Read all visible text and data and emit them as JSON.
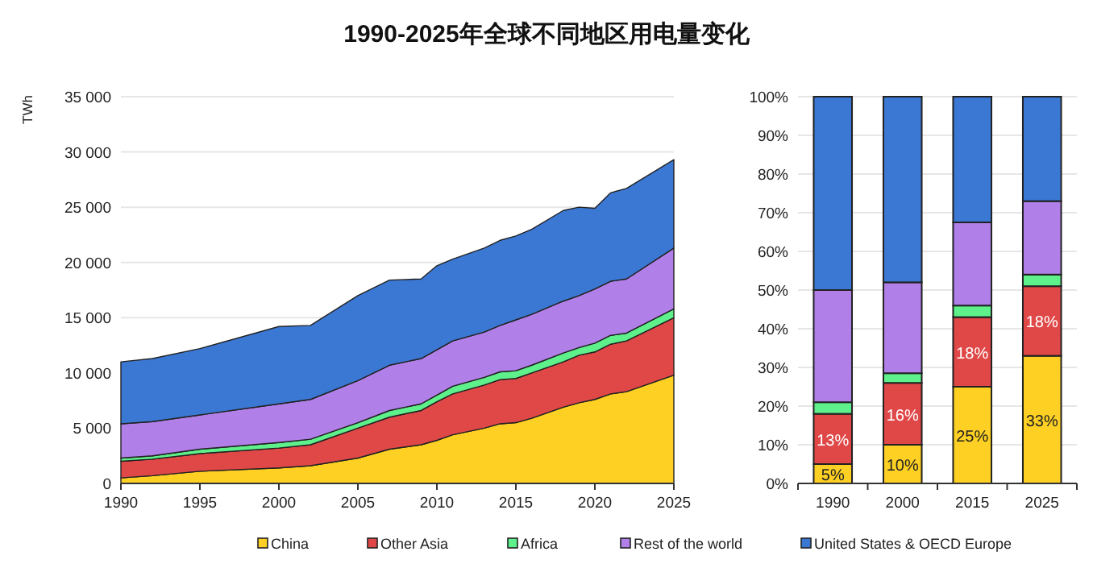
{
  "chart_data": [
    {
      "type": "area",
      "title": "1990-2025年全球不同地区用电量变化",
      "ylabel": "TWh",
      "stacked": true,
      "legend": "bottom",
      "grid": "y",
      "x": [
        1990,
        1992,
        1995,
        2000,
        2002,
        2005,
        2007,
        2009,
        2010,
        2011,
        2013,
        2014,
        2015,
        2016,
        2018,
        2019,
        2020,
        2021,
        2022,
        2025
      ],
      "xlim": [
        1990,
        2025
      ],
      "xticks": [
        1990,
        1995,
        2000,
        2005,
        2010,
        2015,
        2020,
        2025
      ],
      "ylim": [
        0,
        35000
      ],
      "yticks": [
        0,
        {
          "value": 5000,
          "label": "5 000"
        },
        {
          "value": 10000,
          "label": "10 000"
        },
        {
          "value": 15000,
          "label": "15 000"
        },
        {
          "value": 20000,
          "label": "20 000"
        },
        {
          "value": 25000,
          "label": "25 000"
        },
        {
          "value": 30000,
          "label": "30 000"
        },
        {
          "value": 35000,
          "label": "35 000"
        }
      ],
      "series": [
        {
          "name": "China",
          "color": "#fdd023",
          "values": [
            500,
            700,
            1100,
            1400,
            1600,
            2300,
            3100,
            3500,
            3900,
            4400,
            5000,
            5400,
            5500,
            5900,
            6900,
            7300,
            7600,
            8100,
            8300,
            9800
          ]
        },
        {
          "name": "Other Asia",
          "color": "#e04848",
          "values": [
            1500,
            1500,
            1600,
            1800,
            1900,
            2700,
            2900,
            3100,
            3500,
            3700,
            3900,
            4000,
            4000,
            4100,
            4100,
            4300,
            4300,
            4500,
            4600,
            5200
          ]
        },
        {
          "name": "Africa",
          "color": "#5ef08a",
          "values": [
            300,
            300,
            400,
            500,
            500,
            500,
            600,
            600,
            600,
            700,
            700,
            700,
            700,
            700,
            800,
            700,
            800,
            800,
            700,
            800
          ]
        },
        {
          "name": "Rest of the world",
          "color": "#b07fe8",
          "values": [
            3100,
            3100,
            3100,
            3500,
            3600,
            3800,
            4100,
            4100,
            4100,
            4100,
            4100,
            4200,
            4600,
            4600,
            4700,
            4700,
            4900,
            4900,
            4900,
            5500
          ]
        },
        {
          "name": "United States & OECD Europe",
          "color": "#3b78d4",
          "values": [
            5600,
            5700,
            6000,
            7000,
            6700,
            7700,
            7700,
            7200,
            7600,
            7400,
            7600,
            7700,
            7600,
            7700,
            8200,
            8000,
            7300,
            8000,
            8200,
            8000
          ]
        }
      ]
    },
    {
      "type": "bar",
      "stacked": true,
      "grid": "y",
      "categories": [
        "1990",
        "2000",
        "2015",
        "2025"
      ],
      "ylim": [
        0,
        100
      ],
      "yticks": [
        {
          "value": 0,
          "label": "0%"
        },
        {
          "value": 10,
          "label": "10%"
        },
        {
          "value": 20,
          "label": "20%"
        },
        {
          "value": 30,
          "label": "30%"
        },
        {
          "value": 40,
          "label": "40%"
        },
        {
          "value": 50,
          "label": "50%"
        },
        {
          "value": 60,
          "label": "60%"
        },
        {
          "value": 70,
          "label": "70%"
        },
        {
          "value": 80,
          "label": "80%"
        },
        {
          "value": 90,
          "label": "90%"
        },
        {
          "value": 100,
          "label": "100%"
        }
      ],
      "series": [
        {
          "color": "#fdd023",
          "values": [
            5,
            10,
            25,
            33
          ],
          "value_labels": [
            "5%",
            "10%",
            "25%",
            "33%"
          ]
        },
        {
          "color": "#e04848",
          "values": [
            13,
            16,
            18,
            18
          ],
          "value_labels": [
            "13%",
            "16%",
            "18%",
            "18%"
          ]
        },
        {
          "color": "#5ef08a",
          "values": [
            3,
            2.5,
            3,
            3
          ]
        },
        {
          "color": "#b07fe8",
          "values": [
            29,
            23.5,
            21.5,
            19
          ]
        },
        {
          "color": "#3b78d4",
          "values": [
            50,
            48,
            32.5,
            27
          ]
        }
      ]
    }
  ]
}
